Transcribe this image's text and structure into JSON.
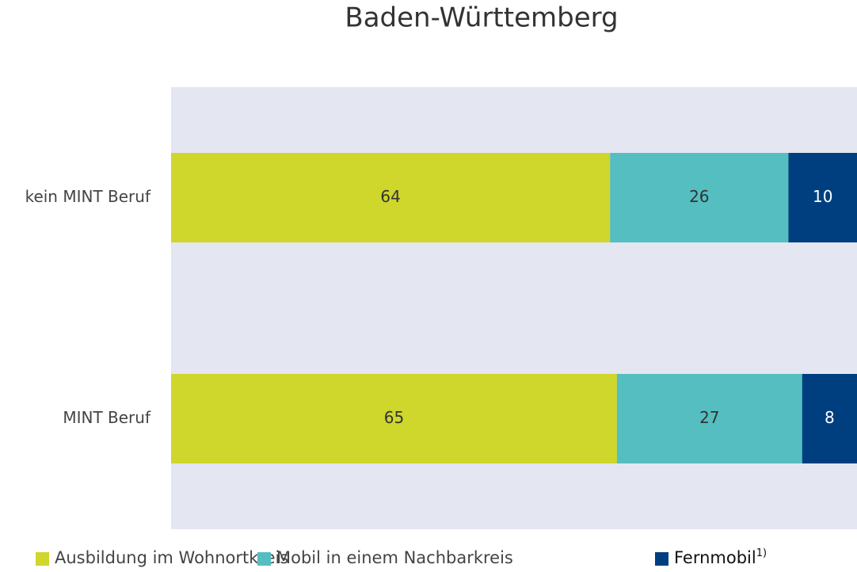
{
  "chart_data": {
    "type": "stacked_bar_horizontal",
    "title": "Baden-Württemberg",
    "categories": [
      "kein MINT Beruf",
      "MINT Beruf"
    ],
    "series": [
      {
        "name": "Ausbildung im Wohnortkreis",
        "color": "#cfd62c",
        "label_color": "#333333",
        "values": [
          64,
          65
        ]
      },
      {
        "name": "Mobil in einem Nachbarkreis",
        "color": "#55bec1",
        "label_color": "#333333",
        "values": [
          26,
          27
        ]
      },
      {
        "name": "Fernmobil",
        "name_superscript": "1)",
        "color": "#003f7f",
        "label_color": "#ffffff",
        "values": [
          10,
          8
        ]
      }
    ],
    "xlim": [
      0,
      100
    ],
    "plot_background": "#e4e6f1",
    "legend": "bottom"
  }
}
